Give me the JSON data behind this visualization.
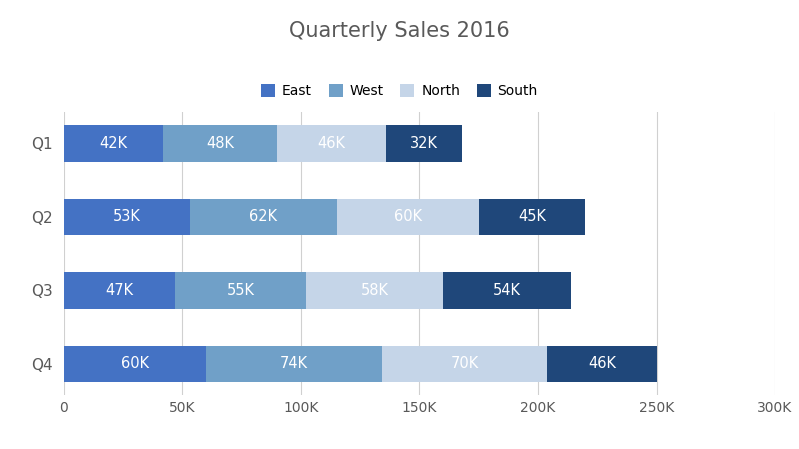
{
  "title": "Quarterly Sales 2016",
  "categories": [
    "Q1",
    "Q2",
    "Q3",
    "Q4"
  ],
  "series": [
    {
      "name": "East",
      "values": [
        42000,
        53000,
        47000,
        60000
      ],
      "color": "#4472C4"
    },
    {
      "name": "West",
      "values": [
        48000,
        62000,
        55000,
        74000
      ],
      "color": "#70A0C8"
    },
    {
      "name": "North",
      "values": [
        46000,
        60000,
        58000,
        70000
      ],
      "color": "#C5D5E8"
    },
    {
      "name": "South",
      "values": [
        32000,
        45000,
        54000,
        46000
      ],
      "color": "#1F477A"
    }
  ],
  "xlim": [
    0,
    300000
  ],
  "xticks": [
    0,
    50000,
    100000,
    150000,
    200000,
    250000,
    300000
  ],
  "xtick_labels": [
    "0",
    "50K",
    "100K",
    "150K",
    "200K",
    "250K",
    "300K"
  ],
  "background_color": "#FFFFFF",
  "grid_color": "#D0D0D0",
  "title_color": "#595959",
  "label_color": "#595959",
  "bar_label_color": "#FFFFFF",
  "title_fontsize": 15,
  "bar_height": 0.5,
  "bar_label_fontsize": 10.5
}
